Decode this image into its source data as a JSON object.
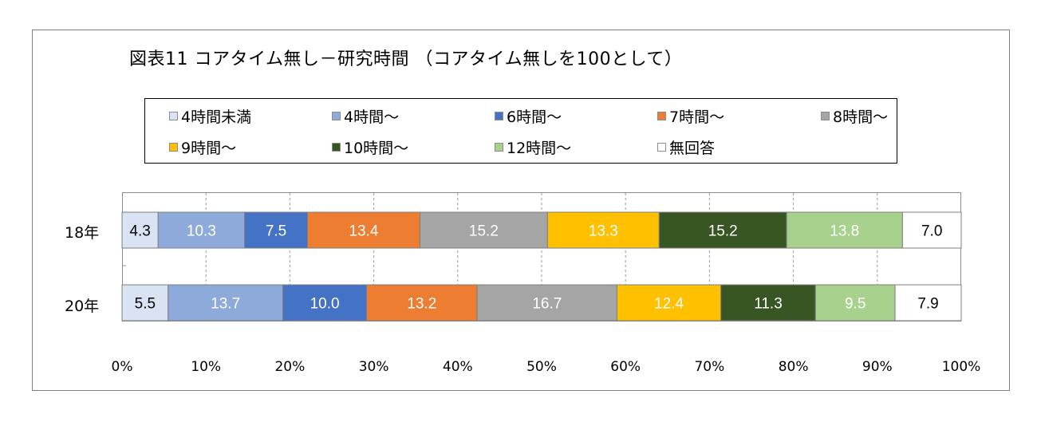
{
  "chart_data": {
    "type": "bar",
    "orientation": "horizontal",
    "stacked": "percent",
    "title": "図表11 コアタイム無し－研究時間 （コアタイム無しを100として）",
    "categories": [
      "18年",
      "20年"
    ],
    "series": [
      {
        "name": "4時間未満",
        "color": "#dae3f3",
        "label_color": "#000000",
        "values": [
          4.3,
          5.5
        ]
      },
      {
        "name": "4時間～",
        "color": "#8eaadb",
        "label_color": "#ffffff",
        "values": [
          10.3,
          13.7
        ]
      },
      {
        "name": "6時間～",
        "color": "#4472c4",
        "label_color": "#ffffff",
        "values": [
          7.5,
          10.0
        ]
      },
      {
        "name": "7時間～",
        "color": "#ed7d31",
        "label_color": "#ffffff",
        "values": [
          13.4,
          13.2
        ]
      },
      {
        "name": "8時間～",
        "color": "#a5a5a5",
        "label_color": "#ffffff",
        "values": [
          15.2,
          16.7
        ]
      },
      {
        "name": "9時間～",
        "color": "#ffc000",
        "label_color": "#ffffff",
        "values": [
          13.3,
          12.4
        ]
      },
      {
        "name": "10時間～",
        "color": "#375623",
        "label_color": "#ffffff",
        "values": [
          15.2,
          11.3
        ]
      },
      {
        "name": "12時間～",
        "color": "#a9d18e",
        "label_color": "#ffffff",
        "values": [
          13.8,
          9.5
        ]
      },
      {
        "name": "無回答",
        "color": "#ffffff",
        "label_color": "#000000",
        "values": [
          7.0,
          7.9
        ]
      }
    ],
    "xlim": [
      0,
      100
    ],
    "xticks": [
      "0%",
      "10%",
      "20%",
      "30%",
      "40%",
      "50%",
      "60%",
      "70%",
      "80%",
      "90%",
      "100%"
    ],
    "grid": "vertical dashed",
    "legend_position": "top"
  }
}
